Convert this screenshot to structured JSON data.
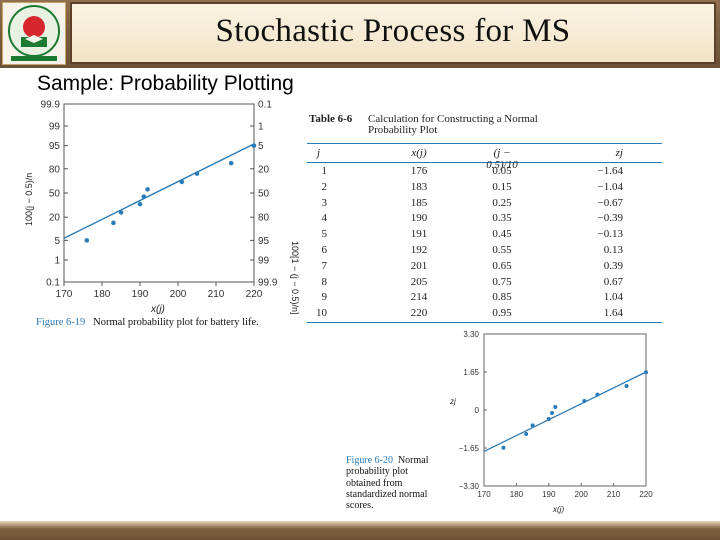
{
  "header": {
    "title": "Stochastic Process for MS"
  },
  "subtitle": "Sample: Probability Plotting",
  "colors": {
    "header_brown": "#7a5d3f",
    "panel_cream": "#f6ead2",
    "figure_blue": "#2a7bb8",
    "line_blue": "#1f6fb0"
  },
  "logo": {
    "icon": "university-emblem-icon"
  },
  "chart_data": [
    {
      "type": "scatter",
      "name": "figure-6-19",
      "caption_label": "Figure 6-19",
      "caption_text": "Normal probability plot for battery life.",
      "xlabel": "x(j)",
      "ylabel_left": "100(j − 0.5)/n",
      "ylabel_right": "100[1 − (j − 0.5)/n]",
      "x_ticks": [
        "170",
        "180",
        "190",
        "200",
        "210",
        "220"
      ],
      "xlim": [
        170,
        220
      ],
      "left_ticks": [
        "99.9",
        "99",
        "95",
        "80",
        "50",
        "20",
        "5",
        "1",
        "0.1"
      ],
      "right_ticks": [
        "0.1",
        "1",
        "5",
        "20",
        "50",
        "80",
        "95",
        "99",
        "99.9"
      ],
      "x": [
        176,
        183,
        185,
        190,
        191,
        192,
        201,
        205,
        214,
        220
      ],
      "percent": [
        5,
        15,
        25,
        35,
        45,
        55,
        65,
        75,
        85,
        95
      ],
      "fit_line": {
        "x": [
          170,
          220
        ],
        "percent": [
          5.8,
          95.6
        ]
      }
    },
    {
      "type": "table",
      "name": "table-6-6",
      "label": "Table 6-6",
      "caption_line1": "Calculation for Constructing a Normal",
      "caption_line2": "Probability Plot",
      "columns": [
        "j",
        "x(j)",
        "(j − 0.5)/10",
        "zj"
      ],
      "rows": [
        [
          "1",
          "176",
          "0.05",
          "−1.64"
        ],
        [
          "2",
          "183",
          "0.15",
          "−1.04"
        ],
        [
          "3",
          "185",
          "0.25",
          "−0.67"
        ],
        [
          "4",
          "190",
          "0.35",
          "−0.39"
        ],
        [
          "5",
          "191",
          "0.45",
          "−0.13"
        ],
        [
          "6",
          "192",
          "0.55",
          "0.13"
        ],
        [
          "7",
          "201",
          "0.65",
          "0.39"
        ],
        [
          "8",
          "205",
          "0.75",
          "0.67"
        ],
        [
          "9",
          "214",
          "0.85",
          "1.04"
        ],
        [
          "10",
          "220",
          "0.95",
          "1.64"
        ]
      ]
    },
    {
      "type": "scatter",
      "name": "figure-6-20",
      "caption_label": "Figure 6-20",
      "caption_lines": [
        "Normal",
        "probability plot",
        "obtained from",
        "standardized normal",
        "scores."
      ],
      "xlabel": "x(j)",
      "ylabel": "zj",
      "x_ticks": [
        "170",
        "180",
        "190",
        "200",
        "210",
        "220"
      ],
      "xlim": [
        170,
        220
      ],
      "y_ticks": [
        "3.30",
        "1.65",
        "0",
        "−1.65",
        "−3.30"
      ],
      "ylim": [
        -3.3,
        3.3
      ],
      "x": [
        176,
        183,
        185,
        190,
        191,
        192,
        201,
        205,
        214,
        220
      ],
      "z": [
        -1.64,
        -1.04,
        -0.67,
        -0.39,
        -0.13,
        0.13,
        0.39,
        0.67,
        1.04,
        1.64
      ],
      "fit_line": {
        "x": [
          170,
          220
        ],
        "z": [
          -1.8,
          1.65
        ]
      }
    }
  ]
}
